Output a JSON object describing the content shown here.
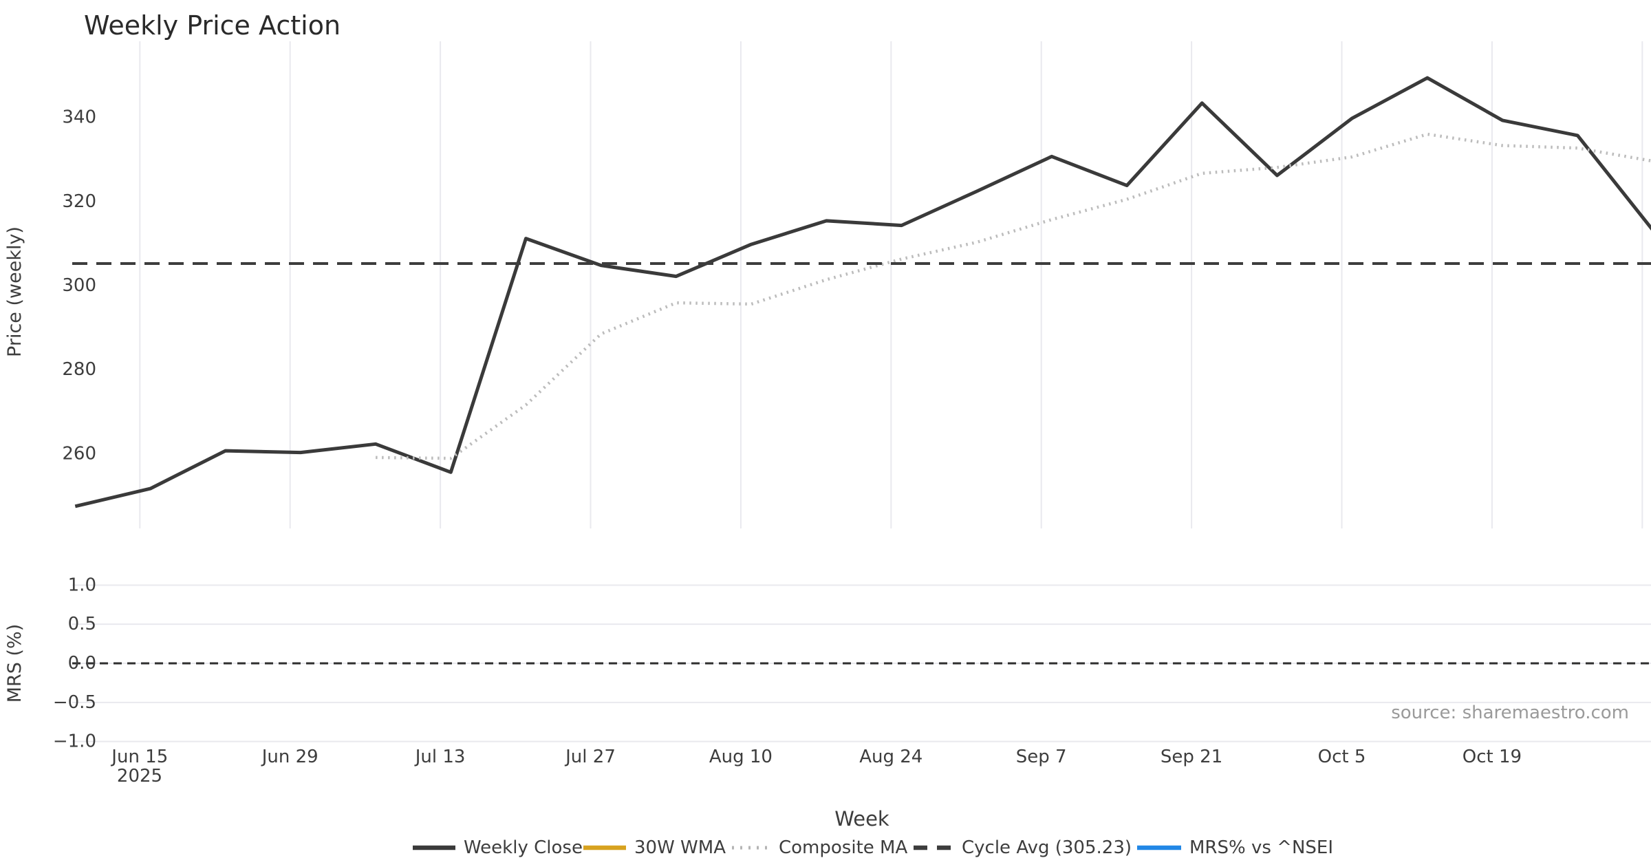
{
  "title": "Weekly Price Action",
  "source_note": "source: sharemaestro.com",
  "axes": {
    "price": {
      "label": "Price (weekly)",
      "ticks": [
        {
          "v": 340,
          "label": "340"
        },
        {
          "v": 320,
          "label": "320"
        },
        {
          "v": 300,
          "label": "300"
        },
        {
          "v": 280,
          "label": "280"
        },
        {
          "v": 260,
          "label": "260"
        }
      ]
    },
    "mrs": {
      "label": "MRS (%)",
      "ticks": [
        {
          "v": 1.0,
          "label": "1.0"
        },
        {
          "v": 0.5,
          "label": "0.5"
        },
        {
          "v": 0.0,
          "label": "0.0"
        },
        {
          "v": -0.5,
          "label": "−0.5"
        },
        {
          "v": -1.0,
          "label": "−1.0"
        }
      ]
    },
    "x": {
      "label": "Week",
      "ticks": [
        "Jun 15",
        "Jun 29",
        "Jul 13",
        "Jul 27",
        "Aug 10",
        "Aug 24",
        "Sep 7",
        "Sep 21",
        "Oct 5",
        "Oct 19"
      ],
      "year_label": "2025",
      "unlabeled_gridlines": 1
    }
  },
  "legend": [
    {
      "label": "Weekly Close",
      "color": "#3a3a3a",
      "style": "solid"
    },
    {
      "label": "30W WMA",
      "color": "#d7a220",
      "style": "solid"
    },
    {
      "label": "Composite MA",
      "color": "#b5b5b5",
      "style": "dotted"
    },
    {
      "label": "Cycle Avg (305.23)",
      "color": "#3d3d3d",
      "style": "dashed"
    },
    {
      "label": "MRS% vs ^NSEI",
      "color": "#2287e6",
      "style": "solid"
    }
  ],
  "chart_data": [
    {
      "type": "line",
      "panel": "price",
      "title": "Weekly Price Action",
      "xlabel": "Week",
      "ylabel": "Price (weekly)",
      "x": [
        "2025-06-09",
        "2025-06-16",
        "2025-06-23",
        "2025-06-30",
        "2025-07-07",
        "2025-07-14",
        "2025-07-21",
        "2025-07-28",
        "2025-08-04",
        "2025-08-11",
        "2025-08-18",
        "2025-08-25",
        "2025-09-01",
        "2025-09-08",
        "2025-09-15",
        "2025-09-22",
        "2025-09-29",
        "2025-10-06",
        "2025-10-13",
        "2025-10-20",
        "2025-10-27",
        "2025-11-03"
      ],
      "x_tick_labels": [
        "Jun 15",
        "Jun 29",
        "Jul 13",
        "Jul 27",
        "Aug 10",
        "Aug 24",
        "Sep 7",
        "Sep 21",
        "Oct 5",
        "Oct 19"
      ],
      "ylim": [
        242,
        358
      ],
      "grid": "x",
      "series": [
        {
          "name": "Weekly Close",
          "color": "#3a3a3a",
          "style": "solid",
          "values": [
            247.5,
            251.7,
            260.7,
            260.3,
            262.3,
            255.6,
            311.2,
            304.8,
            302.2,
            309.8,
            315.4,
            314.3,
            322.4,
            330.7,
            323.8,
            343.4,
            326.2,
            339.8,
            349.4,
            339.3,
            335.7,
            313.2
          ]
        },
        {
          "name": "30W WMA",
          "color": "#d7a220",
          "style": "solid",
          "values": []
        },
        {
          "name": "Composite MA",
          "color": "#bcbcbc",
          "style": "dotted",
          "values": [
            null,
            null,
            null,
            null,
            259.1,
            258.9,
            271.6,
            288.5,
            295.9,
            295.6,
            301.4,
            306.3,
            310.3,
            315.7,
            320.5,
            326.7,
            328.1,
            330.6,
            336.0,
            333.3,
            332.7,
            329.6
          ]
        },
        {
          "name": "Cycle Avg (305.23)",
          "color": "#3d3d3d",
          "style": "dashed",
          "constant": 305.23
        }
      ]
    },
    {
      "type": "line",
      "panel": "mrs",
      "ylabel": "MRS (%)",
      "ylim": [
        -1.05,
        1.05
      ],
      "grid": "y",
      "series": [
        {
          "name": "MRS% vs ^NSEI",
          "color": "#2287e6",
          "style": "solid",
          "values": []
        },
        {
          "name": "zero-line",
          "color": "#2f2f2f",
          "style": "dashed",
          "constant": 0.0
        }
      ]
    }
  ]
}
